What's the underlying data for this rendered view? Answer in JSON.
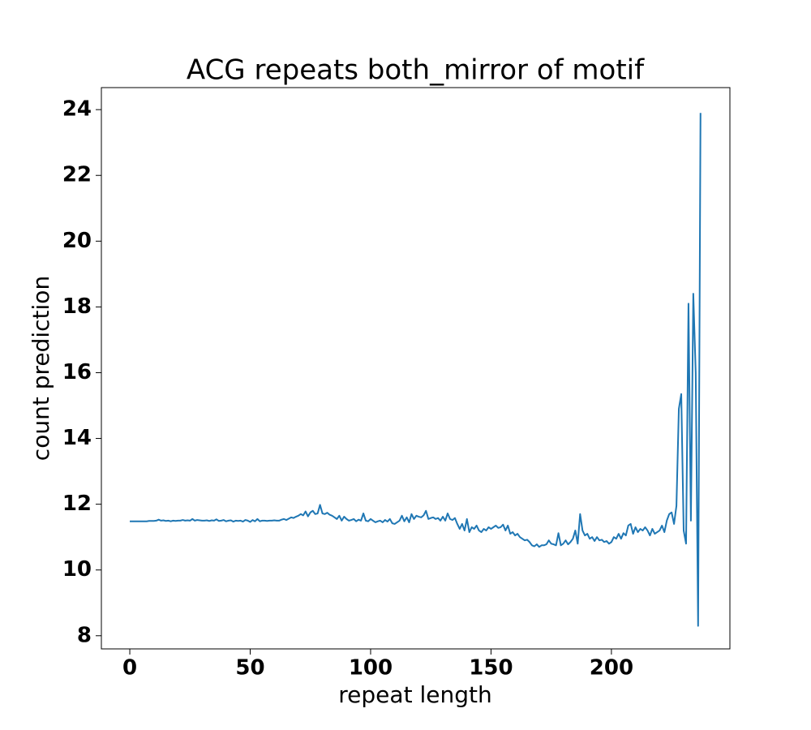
{
  "chart_data": {
    "type": "line",
    "title": "ACG repeats both_mirror of motif",
    "xlabel": "repeat length",
    "ylabel": "count prediction",
    "x": [
      0,
      1,
      2,
      3,
      4,
      5,
      6,
      7,
      8,
      9,
      10,
      11,
      12,
      13,
      14,
      15,
      16,
      17,
      18,
      19,
      20,
      21,
      22,
      23,
      24,
      25,
      26,
      27,
      28,
      29,
      30,
      31,
      32,
      33,
      34,
      35,
      36,
      37,
      38,
      39,
      40,
      41,
      42,
      43,
      44,
      45,
      46,
      47,
      48,
      49,
      50,
      51,
      52,
      53,
      54,
      55,
      56,
      57,
      58,
      59,
      60,
      61,
      62,
      63,
      64,
      65,
      66,
      67,
      68,
      69,
      70,
      71,
      72,
      73,
      74,
      75,
      76,
      77,
      78,
      79,
      80,
      81,
      82,
      83,
      84,
      85,
      86,
      87,
      88,
      89,
      90,
      91,
      92,
      93,
      94,
      95,
      96,
      97,
      98,
      99,
      100,
      101,
      102,
      103,
      104,
      105,
      106,
      107,
      108,
      109,
      110,
      111,
      112,
      113,
      114,
      115,
      116,
      117,
      118,
      119,
      120,
      121,
      122,
      123,
      124,
      125,
      126,
      127,
      128,
      129,
      130,
      131,
      132,
      133,
      134,
      135,
      136,
      137,
      138,
      139,
      140,
      141,
      142,
      143,
      144,
      145,
      146,
      147,
      148,
      149,
      150,
      151,
      152,
      153,
      154,
      155,
      156,
      157,
      158,
      159,
      160,
      161,
      162,
      163,
      164,
      165,
      166,
      167,
      168,
      169,
      170,
      171,
      172,
      173,
      174,
      175,
      176,
      177,
      178,
      179,
      180,
      181,
      182,
      183,
      184,
      185,
      186,
      187,
      188,
      189,
      190,
      191,
      192,
      193,
      194,
      195,
      196,
      197,
      198,
      199,
      200,
      201,
      202,
      203,
      204,
      205,
      206,
      207,
      208,
      209,
      210,
      211,
      212,
      213,
      214,
      215,
      216,
      217,
      218,
      219,
      220,
      221,
      222,
      223,
      224,
      225,
      226,
      227,
      228,
      229,
      230,
      231,
      232,
      233,
      234,
      235,
      236,
      237
    ],
    "series": [
      {
        "color": "#1f77b4",
        "values": [
          11.48,
          11.48,
          11.48,
          11.48,
          11.48,
          11.48,
          11.48,
          11.48,
          11.49,
          11.49,
          11.49,
          11.5,
          11.53,
          11.5,
          11.51,
          11.49,
          11.5,
          11.48,
          11.5,
          11.49,
          11.5,
          11.5,
          11.52,
          11.5,
          11.51,
          11.5,
          11.55,
          11.5,
          11.52,
          11.51,
          11.5,
          11.5,
          11.51,
          11.49,
          11.51,
          11.5,
          11.54,
          11.49,
          11.5,
          11.52,
          11.48,
          11.5,
          11.51,
          11.47,
          11.5,
          11.49,
          11.5,
          11.47,
          11.52,
          11.5,
          11.46,
          11.52,
          11.48,
          11.55,
          11.48,
          11.5,
          11.5,
          11.49,
          11.5,
          11.5,
          11.51,
          11.5,
          11.5,
          11.53,
          11.55,
          11.52,
          11.56,
          11.6,
          11.58,
          11.62,
          11.65,
          11.7,
          11.66,
          11.78,
          11.63,
          11.75,
          11.8,
          11.7,
          11.72,
          11.98,
          11.72,
          11.7,
          11.74,
          11.68,
          11.65,
          11.6,
          11.55,
          11.65,
          11.5,
          11.62,
          11.55,
          11.5,
          11.52,
          11.55,
          11.48,
          11.53,
          11.5,
          11.72,
          11.5,
          11.48,
          11.55,
          11.5,
          11.45,
          11.48,
          11.5,
          11.45,
          11.52,
          11.47,
          11.55,
          11.42,
          11.4,
          11.45,
          11.5,
          11.65,
          11.48,
          11.6,
          11.45,
          11.7,
          11.55,
          11.65,
          11.62,
          11.6,
          11.66,
          11.8,
          11.55,
          11.58,
          11.6,
          11.55,
          11.58,
          11.5,
          11.62,
          11.5,
          11.72,
          11.55,
          11.52,
          11.58,
          11.4,
          11.25,
          11.4,
          11.2,
          11.55,
          11.15,
          11.3,
          11.25,
          11.35,
          11.2,
          11.15,
          11.25,
          11.2,
          11.3,
          11.25,
          11.3,
          11.35,
          11.28,
          11.3,
          11.38,
          11.2,
          11.35,
          11.1,
          11.15,
          11.05,
          11.1,
          11.0,
          10.95,
          10.9,
          10.92,
          10.85,
          10.75,
          10.72,
          10.78,
          10.7,
          10.75,
          10.75,
          10.78,
          10.9,
          10.8,
          10.78,
          10.75,
          11.12,
          10.75,
          10.8,
          10.9,
          10.78,
          10.85,
          10.95,
          11.2,
          10.8,
          11.7,
          11.2,
          11.05,
          11.1,
          10.95,
          11.0,
          10.88,
          11.0,
          10.9,
          10.92,
          10.85,
          10.88,
          10.8,
          10.85,
          11.0,
          10.95,
          11.1,
          10.95,
          11.12,
          11.05,
          11.35,
          11.4,
          11.1,
          11.3,
          11.15,
          11.25,
          11.2,
          11.3,
          11.2,
          11.05,
          11.25,
          11.1,
          11.15,
          11.2,
          11.35,
          11.15,
          11.5,
          11.7,
          11.75,
          11.4,
          11.95,
          14.9,
          15.35,
          11.2,
          10.8,
          18.1,
          11.5,
          18.4,
          16.0,
          8.3,
          23.9
        ]
      }
    ],
    "xlim": [
      -11.8,
      249.2
    ],
    "ylim": [
      7.6,
      24.67
    ],
    "xticks": [
      0,
      50,
      100,
      150,
      200
    ],
    "yticks": [
      8,
      10,
      12,
      14,
      16,
      18,
      20,
      22,
      24
    ],
    "grid": false
  }
}
